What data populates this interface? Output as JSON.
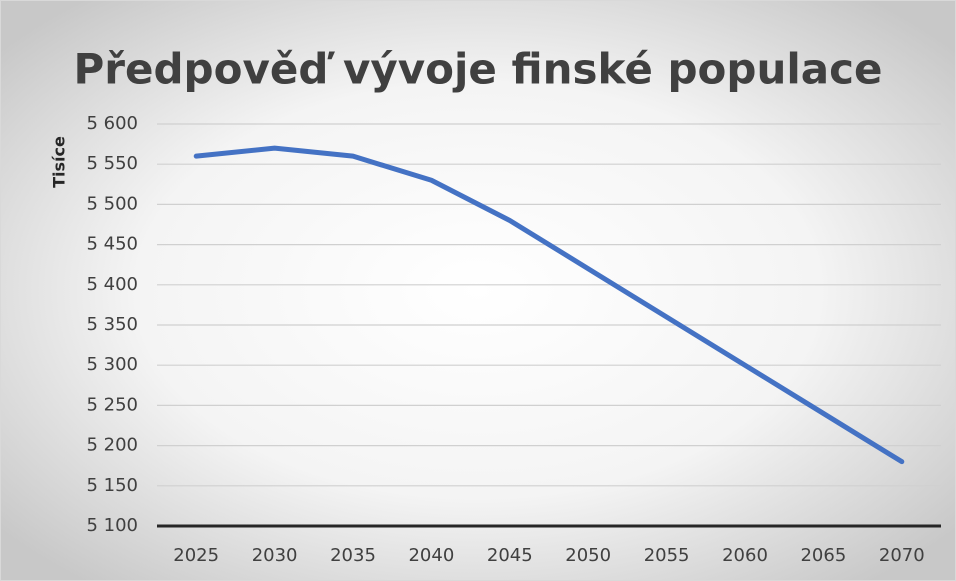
{
  "chart_data": {
    "type": "line",
    "title": "Předpověď vývoje finské populace",
    "y_label": "Tisíce",
    "categories": [
      "2025",
      "2030",
      "2035",
      "2040",
      "2045",
      "2050",
      "2055",
      "2060",
      "2065",
      "2070"
    ],
    "series": [
      {
        "name": null,
        "color": "#4472c4",
        "values": [
          5560,
          5570,
          5560,
          5530,
          5480,
          5420,
          5360,
          5300,
          5240,
          5180
        ]
      }
    ],
    "ylim": [
      5100,
      5600
    ],
    "yticks": [
      {
        "value": 5100,
        "label": "5 100"
      },
      {
        "value": 5150,
        "label": "5 150"
      },
      {
        "value": 5200,
        "label": "5 200"
      },
      {
        "value": 5250,
        "label": "5 250"
      },
      {
        "value": 5300,
        "label": "5 300"
      },
      {
        "value": 5350,
        "label": "5 350"
      },
      {
        "value": 5400,
        "label": "5 400"
      },
      {
        "value": 5450,
        "label": "5 450"
      },
      {
        "value": 5500,
        "label": "5 500"
      },
      {
        "value": 5550,
        "label": "5 550"
      },
      {
        "value": 5600,
        "label": "5 600"
      }
    ],
    "grid": true
  }
}
